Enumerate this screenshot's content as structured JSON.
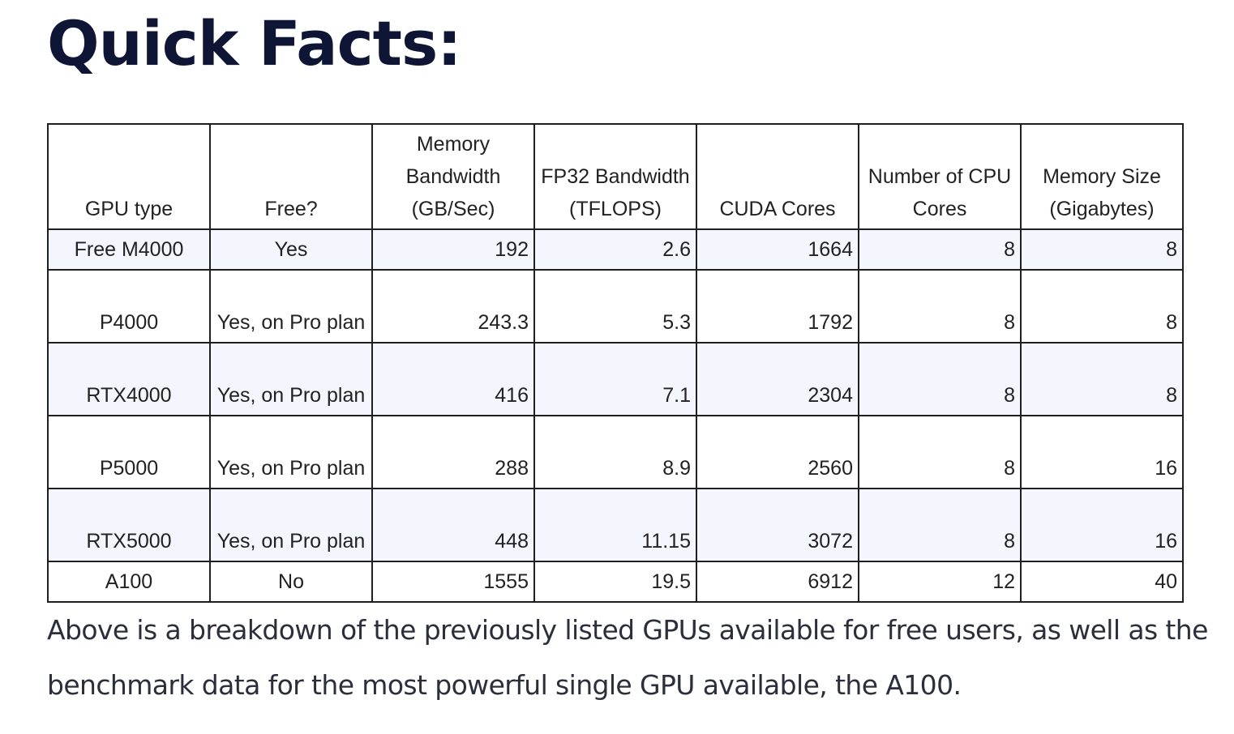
{
  "page": {
    "heading": "Quick Facts:",
    "paragraph": "Above is a breakdown of the previously listed GPUs available for free users, as well as the benchmark data for the most powerful single GPU available, the A100."
  },
  "table": {
    "headers": {
      "gpu_type": "GPU type",
      "free": "Free?",
      "memory_bandwidth": "Memory Bandwidth (GB/Sec)",
      "fp32_bandwidth": "FP32 Bandwidth (TFLOPS)",
      "cuda_cores": "CUDA Cores",
      "cpu_cores": "Number of CPU Cores",
      "memory_size": "Memory Size (Gigabytes)"
    },
    "rows": [
      {
        "gpu": "Free M4000",
        "free": "Yes",
        "mem_bw": "192",
        "fp32": "2.6",
        "cuda": "1664",
        "cpu": "8",
        "mem": "8"
      },
      {
        "gpu": "P4000",
        "free": "Yes, on Pro plan",
        "mem_bw": "243.3",
        "fp32": "5.3",
        "cuda": "1792",
        "cpu": "8",
        "mem": "8"
      },
      {
        "gpu": "RTX4000",
        "free": "Yes, on Pro plan",
        "mem_bw": "416",
        "fp32": "7.1",
        "cuda": "2304",
        "cpu": "8",
        "mem": "8"
      },
      {
        "gpu": "P5000",
        "free": "Yes, on Pro plan",
        "mem_bw": "288",
        "fp32": "8.9",
        "cuda": "2560",
        "cpu": "8",
        "mem": "16"
      },
      {
        "gpu": "RTX5000",
        "free": "Yes, on Pro plan",
        "mem_bw": "448",
        "fp32": "11.15",
        "cuda": "3072",
        "cpu": "8",
        "mem": "16"
      },
      {
        "gpu": "A100",
        "free": "No",
        "mem_bw": "1555",
        "fp32": "19.5",
        "cuda": "6912",
        "cpu": "12",
        "mem": "40"
      }
    ]
  }
}
